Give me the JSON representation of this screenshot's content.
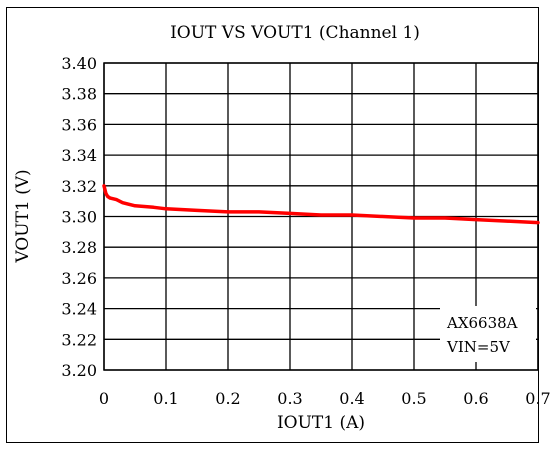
{
  "chart_data": {
    "type": "line",
    "title": "IOUT  VS VOUT1 (Channel 1)",
    "xlabel": "IOUT1 (A)",
    "ylabel": "VOUT1 (V)",
    "xlim": [
      0,
      0.7
    ],
    "ylim": [
      3.2,
      3.4
    ],
    "x_ticks": [
      "0",
      "0.1",
      "0.2",
      "0.3",
      "0.4",
      "0.5",
      "0.6",
      "0.7"
    ],
    "y_ticks": [
      "3.40",
      "3.38",
      "3.36",
      "3.34",
      "3.32",
      "3.30",
      "3.28",
      "3.26",
      "3.24",
      "3.22",
      "3.20"
    ],
    "grid": true,
    "annotation": [
      "AX6638A",
      "VIN=5V"
    ],
    "series": [
      {
        "color": "#ff0000",
        "x": [
          0,
          0.003,
          0.006,
          0.01,
          0.02,
          0.03,
          0.05,
          0.08,
          0.1,
          0.15,
          0.2,
          0.25,
          0.3,
          0.35,
          0.4,
          0.45,
          0.5,
          0.55,
          0.6,
          0.65,
          0.7
        ],
        "y": [
          3.32,
          3.315,
          3.313,
          3.312,
          3.311,
          3.309,
          3.307,
          3.306,
          3.305,
          3.304,
          3.303,
          3.303,
          3.302,
          3.301,
          3.301,
          3.3,
          3.299,
          3.299,
          3.298,
          3.297,
          3.296
        ]
      }
    ]
  }
}
